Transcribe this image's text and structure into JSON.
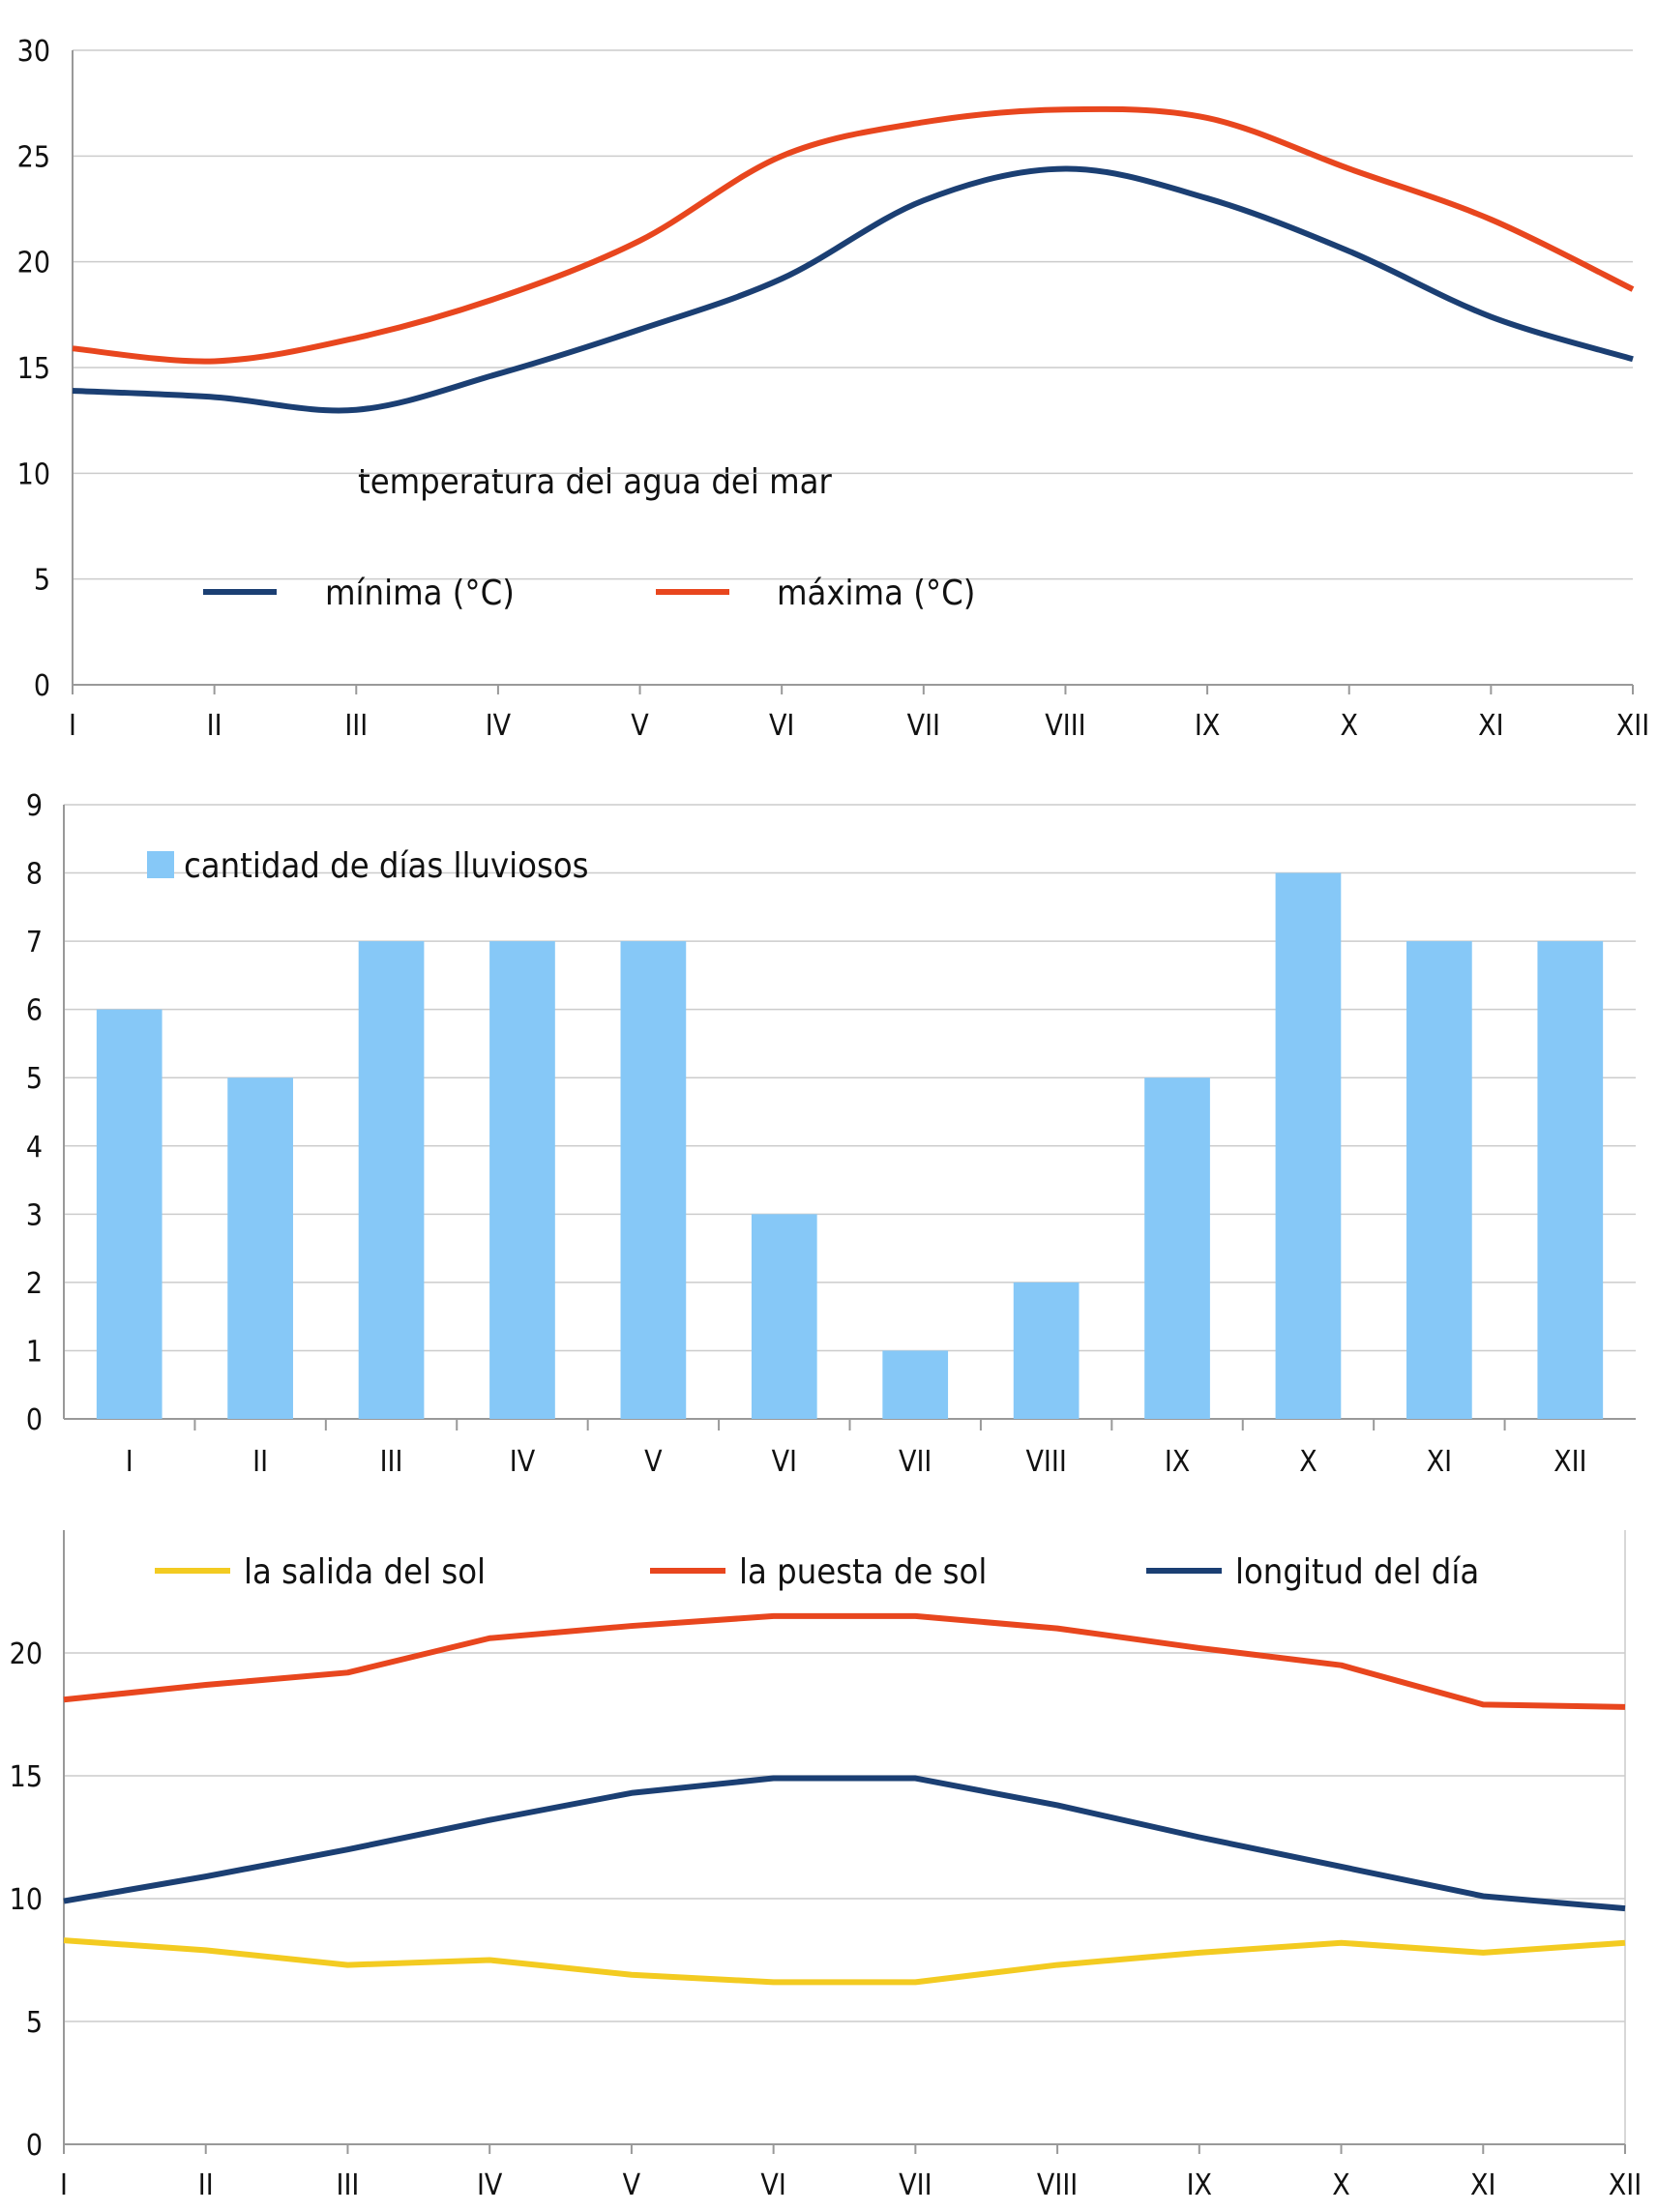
{
  "colors": {
    "min_line": "#1b3f73",
    "max_line": "#e8461e",
    "bars": "#86c8f7",
    "sunrise": "#f3cb21",
    "sunset": "#e8461e",
    "daylength": "#1b3f73",
    "grid": "#cccccc",
    "axis": "#999999"
  },
  "chart_data": [
    {
      "type": "line",
      "title": "",
      "annotation": "temperatura del agua del mar",
      "categories": [
        "I",
        "II",
        "III",
        "IV",
        "V",
        "VI",
        "VII",
        "VIII",
        "IX",
        "X",
        "XI",
        "XII"
      ],
      "ylim": [
        0,
        30
      ],
      "yticks": [
        "0",
        "5",
        "10",
        "15",
        "20",
        "25",
        "30"
      ],
      "grid": true,
      "smooth": true,
      "legend": "inside",
      "series": [
        {
          "name": "mínima (°C)",
          "values": [
            13.9,
            13.6,
            13.0,
            14.7,
            16.8,
            19.2,
            22.9,
            24.4,
            23.0,
            20.5,
            17.4,
            15.4
          ]
        },
        {
          "name": "máxima (°C)",
          "values": [
            15.9,
            15.3,
            16.4,
            18.3,
            21.0,
            25.0,
            26.6,
            27.2,
            26.8,
            24.4,
            22.0,
            18.7
          ]
        }
      ]
    },
    {
      "type": "bar",
      "title": "",
      "categories": [
        "I",
        "II",
        "III",
        "IV",
        "V",
        "VI",
        "VII",
        "VIII",
        "IX",
        "X",
        "XI",
        "XII"
      ],
      "ylim": [
        0,
        9
      ],
      "yticks": [
        "0",
        "1",
        "2",
        "3",
        "4",
        "5",
        "6",
        "7",
        "8",
        "9"
      ],
      "grid": true,
      "legend": "top-left",
      "series": [
        {
          "name": "cantidad de días lluviosos",
          "values": [
            6,
            5,
            7,
            7,
            7,
            3,
            1,
            2,
            5,
            8,
            7,
            7
          ]
        }
      ]
    },
    {
      "type": "line",
      "title": "",
      "categories": [
        "I",
        "II",
        "III",
        "IV",
        "V",
        "VI",
        "VII",
        "VIII",
        "IX",
        "X",
        "XI",
        "XII"
      ],
      "ylim": [
        0,
        25
      ],
      "yticks": [
        "0",
        "5",
        "10",
        "15",
        "20"
      ],
      "grid": true,
      "legend": "top",
      "series": [
        {
          "name": "la salida del sol",
          "values": [
            8.3,
            7.9,
            7.3,
            7.5,
            6.9,
            6.6,
            6.6,
            7.3,
            7.8,
            8.2,
            7.8,
            8.2
          ]
        },
        {
          "name": "la puesta de sol",
          "values": [
            18.1,
            18.7,
            19.2,
            20.6,
            21.1,
            21.5,
            21.5,
            21.0,
            20.2,
            19.5,
            17.9,
            17.8
          ]
        },
        {
          "name": "longitud del día",
          "values": [
            9.9,
            10.9,
            12.0,
            13.2,
            14.3,
            14.9,
            14.9,
            13.8,
            12.5,
            11.3,
            10.1,
            9.6
          ]
        }
      ]
    }
  ]
}
